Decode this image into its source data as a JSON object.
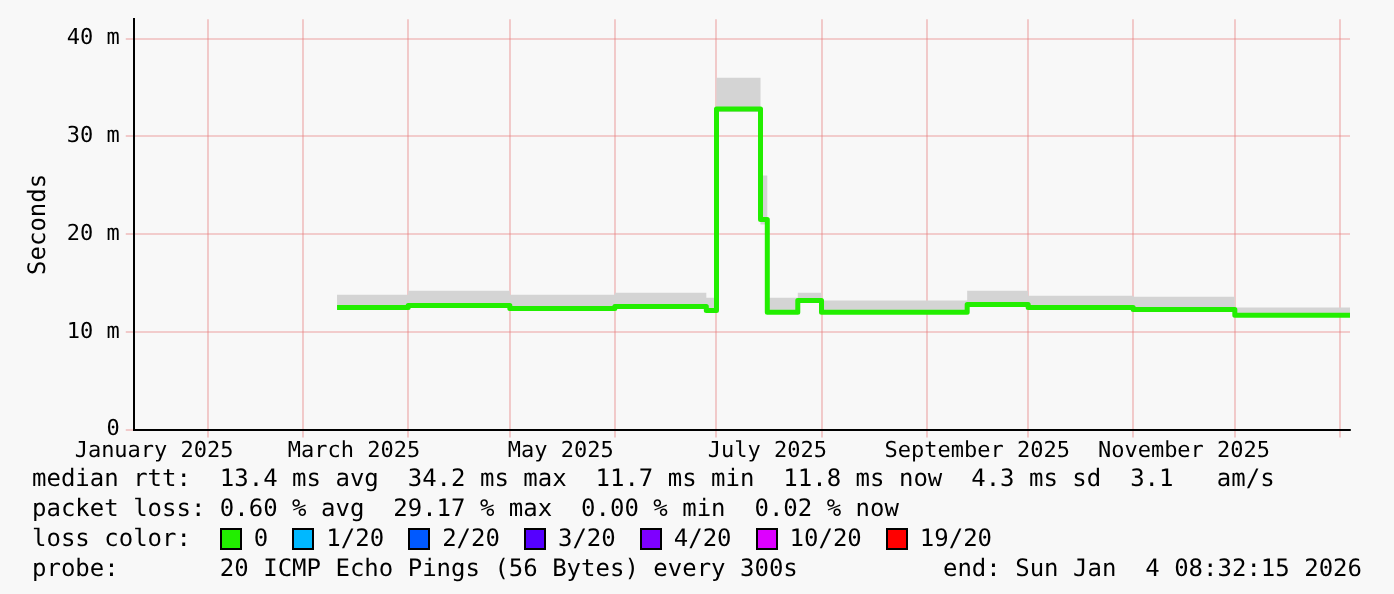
{
  "chart_data": {
    "type": "line",
    "ylabel": "Seconds",
    "xlim": [
      "2025-01-10",
      "2026-01-04"
    ],
    "xticks": [
      {
        "value": "2025-02-01",
        "label": null
      },
      {
        "value": "2025-03-01",
        "label": null
      },
      {
        "value": "2025-03-16",
        "label": "March 2025"
      },
      {
        "value": "2025-04-01",
        "label": null
      },
      {
        "value": "2025-05-01",
        "label": null
      },
      {
        "value": "2025-05-16",
        "label": "May 2025"
      },
      {
        "value": "2025-06-01",
        "label": null
      },
      {
        "value": "2025-07-01",
        "label": null
      },
      {
        "value": "2025-07-16",
        "label": "July 2025"
      },
      {
        "value": "2025-08-01",
        "label": null
      },
      {
        "value": "2025-09-01",
        "label": null
      },
      {
        "value": "2025-09-16",
        "label": "September 2025"
      },
      {
        "value": "2025-10-01",
        "label": null
      },
      {
        "value": "2025-11-01",
        "label": null
      },
      {
        "value": "2025-11-16",
        "label": "November 2025"
      },
      {
        "value": "2025-12-01",
        "label": null
      },
      {
        "value": "2026-01-01",
        "label": null
      },
      {
        "value": "2025-01-16",
        "label": "January 2025"
      }
    ],
    "ylim": [
      0,
      42
    ],
    "yticks": [
      0,
      {
        "value": 10,
        "label": "10 m"
      },
      {
        "value": 20,
        "label": "20 m"
      },
      {
        "value": 30,
        "label": "30 m"
      },
      {
        "value": 40,
        "label": "40 m"
      }
    ],
    "grid": true,
    "legend": "bottom",
    "marker": "none",
    "line_style": "solid",
    "series": [
      {
        "name": "0",
        "color": "#22ee00",
        "x": [
          "2025-03-11",
          "2025-04-01",
          "2025-04-01",
          "2025-05-01",
          "2025-05-01",
          "2025-06-01",
          "2025-06-01",
          "2025-06-28",
          "2025-06-28",
          "2025-07-01",
          "2025-07-01",
          "2025-07-14",
          "2025-07-14",
          "2025-07-16",
          "2025-07-16",
          "2025-07-25",
          "2025-07-25",
          "2025-08-01",
          "2025-08-01",
          "2025-09-13",
          "2025-09-13",
          "2025-10-01",
          "2025-10-01",
          "2025-11-01",
          "2025-11-01",
          "2025-12-01",
          "2025-12-01",
          "2026-01-04"
        ],
        "values": [
          12.5,
          12.5,
          12.7,
          12.7,
          12.4,
          12.4,
          12.6,
          12.6,
          12.2,
          12.2,
          32.8,
          32.8,
          21.5,
          21.5,
          12.0,
          12.0,
          13.2,
          13.2,
          12.0,
          12.0,
          12.8,
          12.8,
          12.5,
          12.5,
          12.3,
          12.3,
          11.7,
          11.7
        ],
        "lower": [
          12.4,
          12.4,
          12.6,
          12.6,
          12.3,
          12.3,
          12.5,
          12.5,
          12.1,
          12.1,
          32.5,
          32.5,
          21.0,
          21.0,
          11.9,
          11.9,
          13.0,
          13.0,
          11.9,
          11.9,
          12.7,
          12.7,
          12.4,
          12.4,
          12.2,
          12.2,
          11.6,
          11.6
        ],
        "upper": [
          13.8,
          13.8,
          14.2,
          14.2,
          13.8,
          13.8,
          14.0,
          14.0,
          13.5,
          13.5,
          36.0,
          36.0,
          26.0,
          26.0,
          13.5,
          13.5,
          14.0,
          14.0,
          13.2,
          13.2,
          14.2,
          14.2,
          13.7,
          13.7,
          13.6,
          13.6,
          12.5,
          12.5
        ]
      },
      {
        "name": "1/20",
        "color": "#00b8ff"
      },
      {
        "name": "2/20",
        "color": "#0059ff"
      },
      {
        "name": "3/20",
        "color": "#5500ff"
      },
      {
        "name": "4/20",
        "color": "#7e00ff"
      },
      {
        "name": "10/20",
        "color": "#dd00ff"
      },
      {
        "name": "19/20",
        "color": "#ff0000"
      }
    ],
    "annotations": [
      "median rtt:  13.4 ms avg  34.2 ms max  11.7 ms min  11.8 ms now  4.3 ms sd  3.1   am/s",
      "packet loss: 0.60 % avg  29.17 % max  0.00 % min  0.02 % now",
      "loss color:",
      "probe:       20 ICMP Echo Pings (56 Bytes) every 300s",
      "end: Sun Jan  4 08:32:15 2026"
    ]
  }
}
